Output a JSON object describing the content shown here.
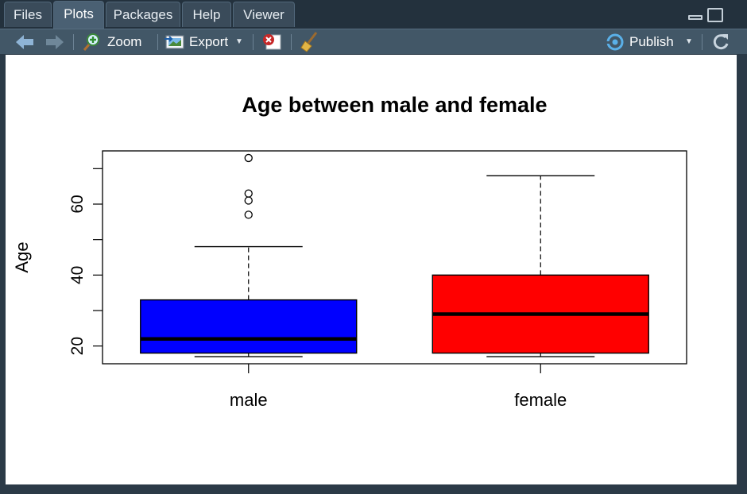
{
  "tabs": [
    {
      "label": "Files",
      "active": false
    },
    {
      "label": "Plots",
      "active": true
    },
    {
      "label": "Packages",
      "active": false
    },
    {
      "label": "Help",
      "active": false
    },
    {
      "label": "Viewer",
      "active": false
    }
  ],
  "toolbar": {
    "zoom_label": "Zoom",
    "export_label": "Export",
    "publish_label": "Publish",
    "icons": [
      "arrow-left-icon",
      "arrow-right-icon",
      "zoom-icon",
      "export-icon",
      "remove-plot-icon",
      "broom-icon",
      "publish-icon",
      "refresh-icon"
    ]
  },
  "chart_data": {
    "type": "boxplot",
    "title": "Age between male and female",
    "xlabel": "",
    "ylabel": "Age",
    "categories": [
      "male",
      "female"
    ],
    "yticks": [
      20,
      40,
      60
    ],
    "ylim": [
      15,
      75
    ],
    "series": [
      {
        "category": "male",
        "color": "#0000ff",
        "whisker_low": 17,
        "q1": 18,
        "median": 22,
        "q3": 33,
        "whisker_high": 48,
        "outliers": [
          57,
          61,
          63,
          73
        ]
      },
      {
        "category": "female",
        "color": "#ff0000",
        "whisker_low": 17,
        "q1": 18,
        "median": 29,
        "q3": 40,
        "whisker_high": 68,
        "outliers": []
      }
    ]
  }
}
